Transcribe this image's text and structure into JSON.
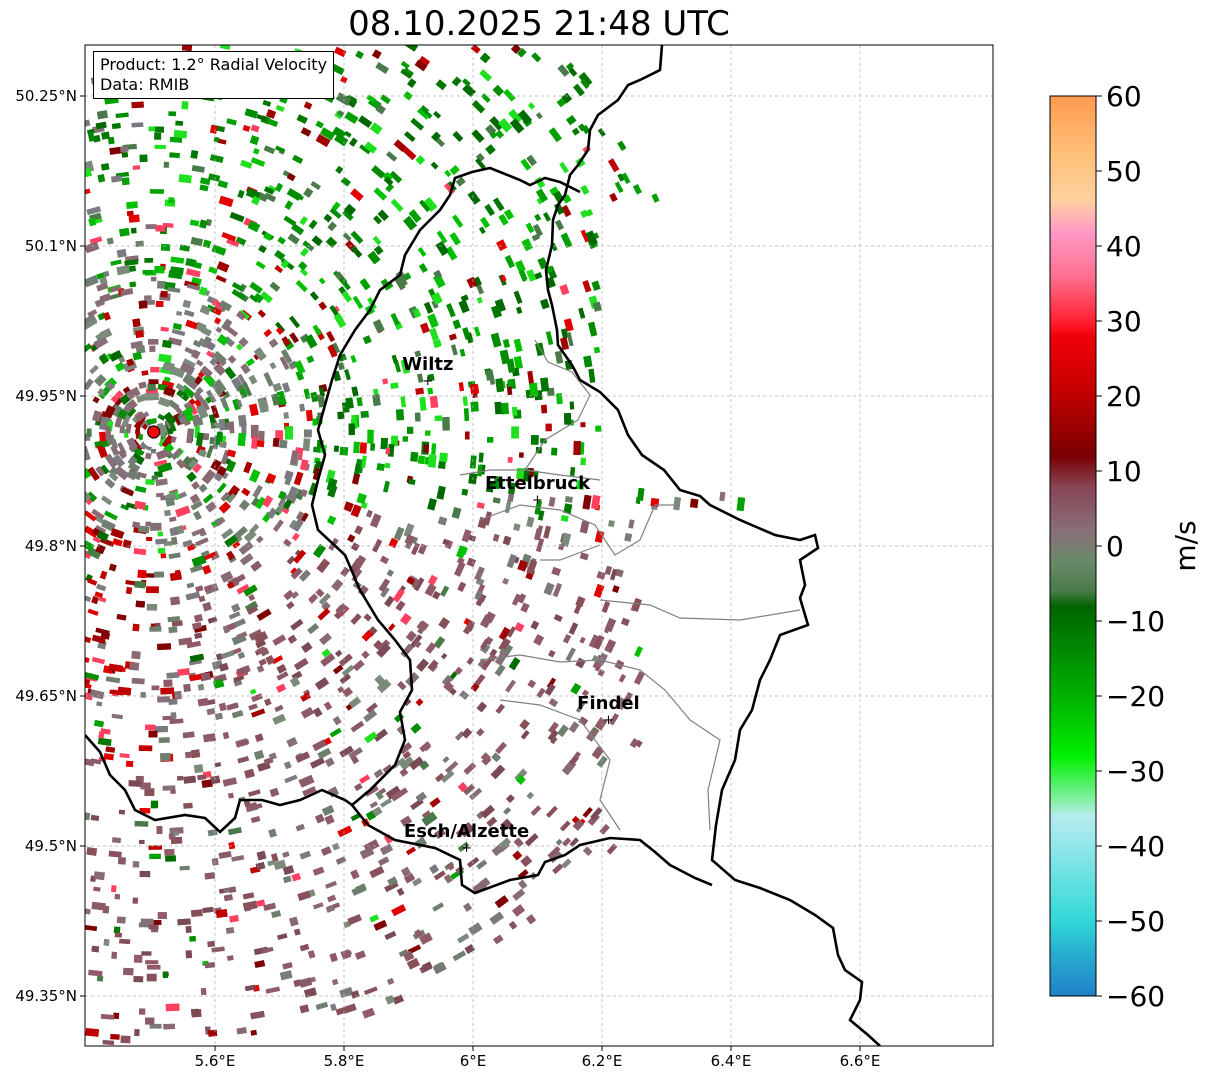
{
  "title": "08.10.2025 21:48 UTC",
  "info": {
    "product": "Product: 1.2° Radial Velocity",
    "source": "Data: RMIB"
  },
  "axes": {
    "lat_ticks": [
      "50.25°N",
      "50.1°N",
      "49.95°N",
      "49.8°N",
      "49.65°N",
      "49.5°N",
      "49.35°N"
    ],
    "lon_ticks": [
      "5.6°E",
      "5.8°E",
      "6°E",
      "6.2°E",
      "6.4°E",
      "6.6°E"
    ]
  },
  "cities": [
    {
      "name": "Wiltz",
      "lon": 5.93,
      "lat": 49.966
    },
    {
      "name": "Ettelbruck",
      "lon": 6.1,
      "lat": 49.847
    },
    {
      "name": "Findel",
      "lon": 6.21,
      "lat": 49.627
    },
    {
      "name": "Esch/Alzette",
      "lon": 5.99,
      "lat": 49.499
    }
  ],
  "radar_site": {
    "lon": 5.505,
    "lat": 49.914
  },
  "colorbar": {
    "label": "m/s",
    "ticks": [
      "60",
      "50",
      "40",
      "30",
      "20",
      "10",
      "0",
      "−10",
      "−20",
      "−30",
      "−40",
      "−50",
      "−60"
    ],
    "range": [
      -60,
      60
    ],
    "stops": [
      {
        "v": 60,
        "c": "#ff9a50"
      },
      {
        "v": 52,
        "c": "#ffc27a"
      },
      {
        "v": 46,
        "c": "#ffd0a0"
      },
      {
        "v": 42,
        "c": "#ff9ac6"
      },
      {
        "v": 36,
        "c": "#ff7090"
      },
      {
        "v": 30,
        "c": "#ff2030"
      },
      {
        "v": 28,
        "c": "#f00008"
      },
      {
        "v": 20,
        "c": "#c00000"
      },
      {
        "v": 12,
        "c": "#780000"
      },
      {
        "v": 8,
        "c": "#884455"
      },
      {
        "v": 2,
        "c": "#887078"
      },
      {
        "v": -2,
        "c": "#6a8a6a"
      },
      {
        "v": -6,
        "c": "#4a7a4a"
      },
      {
        "v": -8,
        "c": "#006400"
      },
      {
        "v": -20,
        "c": "#00b000"
      },
      {
        "v": -28,
        "c": "#00f000"
      },
      {
        "v": -34,
        "c": "#88f0a8"
      },
      {
        "v": -36,
        "c": "#b8ecf0"
      },
      {
        "v": -50,
        "c": "#30d8d8"
      },
      {
        "v": -54,
        "c": "#28b0d0"
      },
      {
        "v": -60,
        "c": "#2080c8"
      }
    ]
  },
  "colors": {
    "border_national": "#000000",
    "border_canton": "#808080",
    "grid": "#b0b0b0",
    "radar_marker": "#ff0000"
  }
}
